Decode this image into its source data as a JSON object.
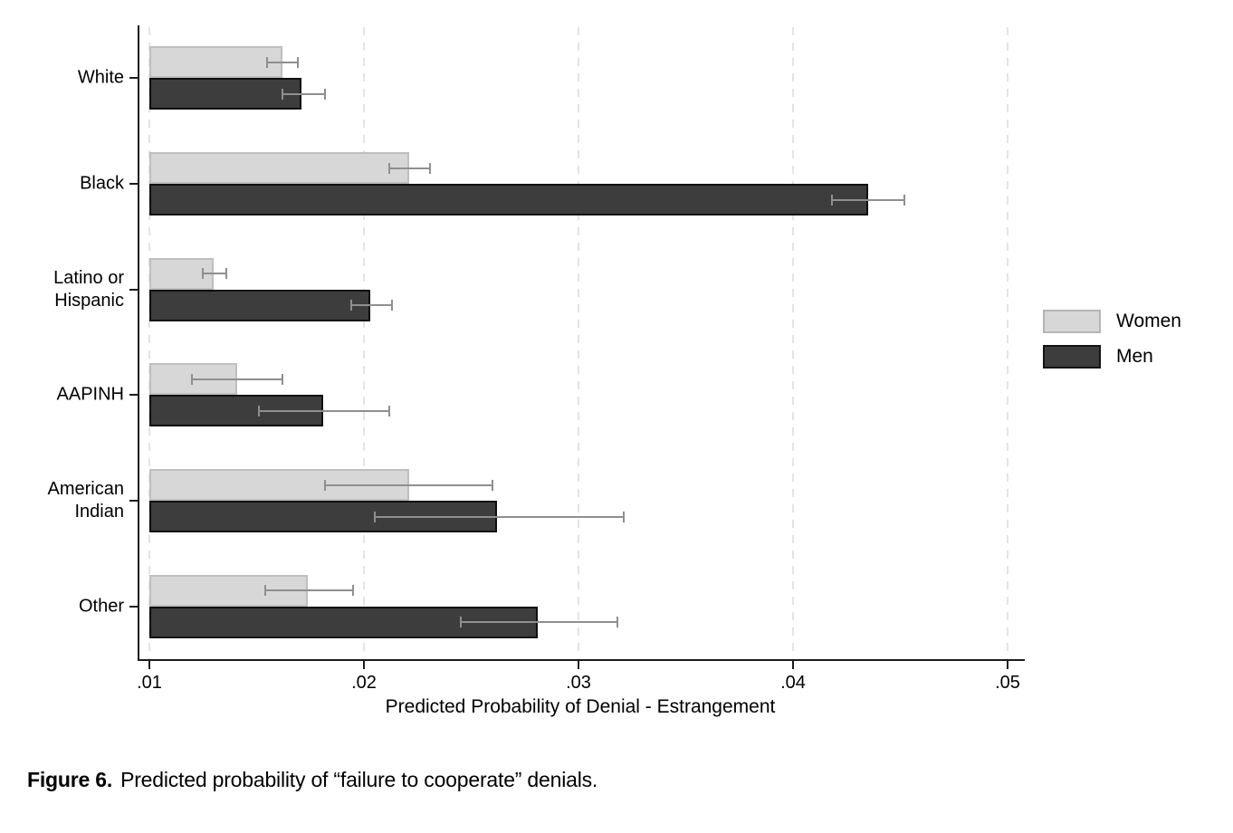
{
  "figure": {
    "caption_label": "Figure 6.",
    "caption_text": "Predicted probability of “failure to cooperate” denials."
  },
  "colors": {
    "background": "#ffffff",
    "axis": "#1c1c1c",
    "gridline": "#e4e4e4",
    "error_bar": "#8f8f8f",
    "women_fill": "#d7d7d7",
    "women_border": "#bfbfbf",
    "men_fill": "#3d3d3d",
    "men_border": "#101010"
  },
  "chart_data": {
    "type": "bar",
    "orientation": "horizontal",
    "title": "",
    "xlabel": "Predicted Probability of Denial - Estrangement",
    "ylabel": "",
    "xlim": [
      0.01,
      0.05
    ],
    "grid": "vertical dashed gridlines at each x tick",
    "legend_position": "right",
    "xticks": [
      {
        "value": 0.01,
        "label": ".01"
      },
      {
        "value": 0.02,
        "label": ".02"
      },
      {
        "value": 0.03,
        "label": ".03"
      },
      {
        "value": 0.04,
        "label": ".04"
      },
      {
        "value": 0.05,
        "label": ".05"
      }
    ],
    "categories": [
      {
        "id": "white",
        "lines": [
          "White"
        ]
      },
      {
        "id": "black",
        "lines": [
          "Black"
        ]
      },
      {
        "id": "latino-or-hispanic",
        "lines": [
          "Latino or",
          "Hispanic"
        ]
      },
      {
        "id": "aapinh",
        "lines": [
          "AAPINH"
        ]
      },
      {
        "id": "american-indian",
        "lines": [
          "American",
          "Indian"
        ]
      },
      {
        "id": "other",
        "lines": [
          "Other"
        ]
      }
    ],
    "series": [
      {
        "name": "Women",
        "fill": "#d7d7d7",
        "border": "#bfbfbf",
        "values": [
          0.0162,
          0.0221,
          0.013,
          0.0141,
          0.0221,
          0.0174
        ],
        "ci_low": [
          0.0155,
          0.0212,
          0.0125,
          0.012,
          0.0182,
          0.0154
        ],
        "ci_high": [
          0.0169,
          0.0231,
          0.0136,
          0.0162,
          0.026,
          0.0195
        ]
      },
      {
        "name": "Men",
        "fill": "#3d3d3d",
        "border": "#101010",
        "values": [
          0.0171,
          0.0435,
          0.0203,
          0.0181,
          0.0262,
          0.0281
        ],
        "ci_low": [
          0.0162,
          0.0418,
          0.0194,
          0.0151,
          0.0205,
          0.0245
        ],
        "ci_high": [
          0.0182,
          0.0452,
          0.0213,
          0.0212,
          0.0321,
          0.0318
        ]
      }
    ],
    "legend": {
      "items": [
        {
          "label": "Women",
          "fill": "#d7d7d7",
          "border": "#b5b5b5"
        },
        {
          "label": "Men",
          "fill": "#3d3d3d",
          "border": "#141414"
        }
      ]
    }
  }
}
